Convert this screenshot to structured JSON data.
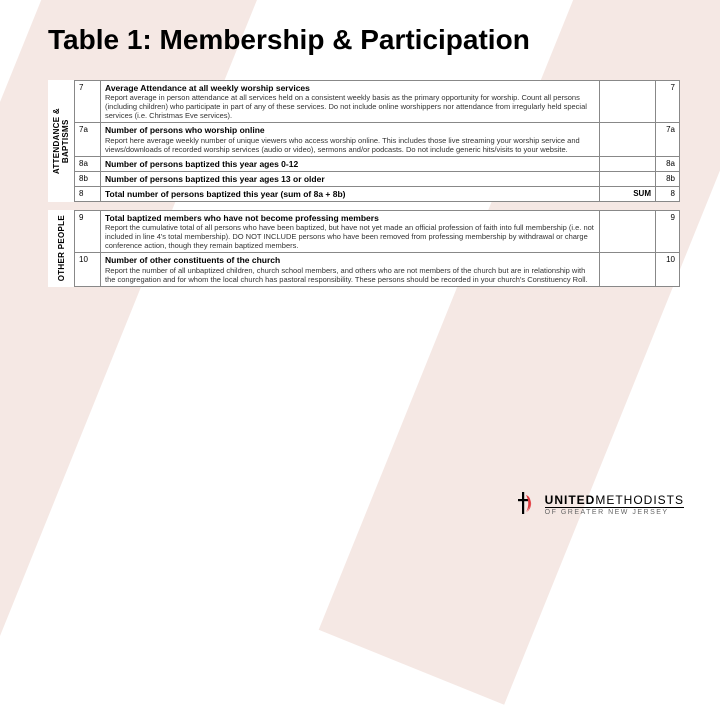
{
  "title": "Table 1: Membership & Participation",
  "sections": [
    {
      "side_label": "ATTENDANCE &\nBAPTISMS",
      "rows": [
        {
          "num": "7",
          "title": "Average Attendance at all weekly worship services",
          "desc": "Report average in person attendance at all services held on a consistent weekly basis as the primary opportunity for worship. Count all persons (including children) who participate in part of any of these services. Do not include online worshippers nor attendance from irregularly held special services (i.e. Christmas Eve services).",
          "right": "7",
          "dashed": true
        },
        {
          "num": "7a",
          "title": "Number of persons who worship online",
          "desc": "Report here average weekly number of unique viewers who access worship online. This includes those live streaming your worship service and views/downloads of recorded worship services (audio or video), sermons and/or podcasts. Do not include generic hits/visits to your website.",
          "right": "7a"
        },
        {
          "num": "8a",
          "title": "Number of persons baptized this year ages 0-12",
          "desc": "",
          "right": "8a"
        },
        {
          "num": "8b",
          "title": "Number of persons baptized this year ages 13 or older",
          "desc": "",
          "right": "8b"
        },
        {
          "num": "8",
          "title": "Total number of persons baptized this year (sum of 8a + 8b)",
          "desc": "",
          "right": "8",
          "sum": "SUM"
        }
      ]
    },
    {
      "side_label": "OTHER PEOPLE",
      "rows": [
        {
          "num": "9",
          "title": "Total baptized members who have not become professing members",
          "desc": "Report the cumulative total of all persons who have been baptized, but have not yet made an official profession of faith into full membership (i.e. not included in line 4's total membership). DO NOT INCLUDE persons who have been removed from professing membership by withdrawal or charge conference action, though they remain baptized members.",
          "right": "9",
          "dashed": true
        },
        {
          "num": "10",
          "title": "Number of other constituents of the church",
          "desc": "Report the number of all unbaptized children, church school members, and others who are not members of the church but are in relationship with the congregation and for whom the local church has pastoral responsibility. These persons should be recorded in your church's Constituency Roll.",
          "right": "10"
        }
      ]
    }
  ],
  "logo": {
    "main_bold": "UNITED",
    "main_light": "METHODISTS",
    "sub": "OF GREATER NEW JERSEY",
    "flame_color": "#e03a3e",
    "cross_color": "#000000"
  },
  "colors": {
    "bg_band": "#f5e8e4",
    "border": "#888888",
    "text": "#000000"
  }
}
